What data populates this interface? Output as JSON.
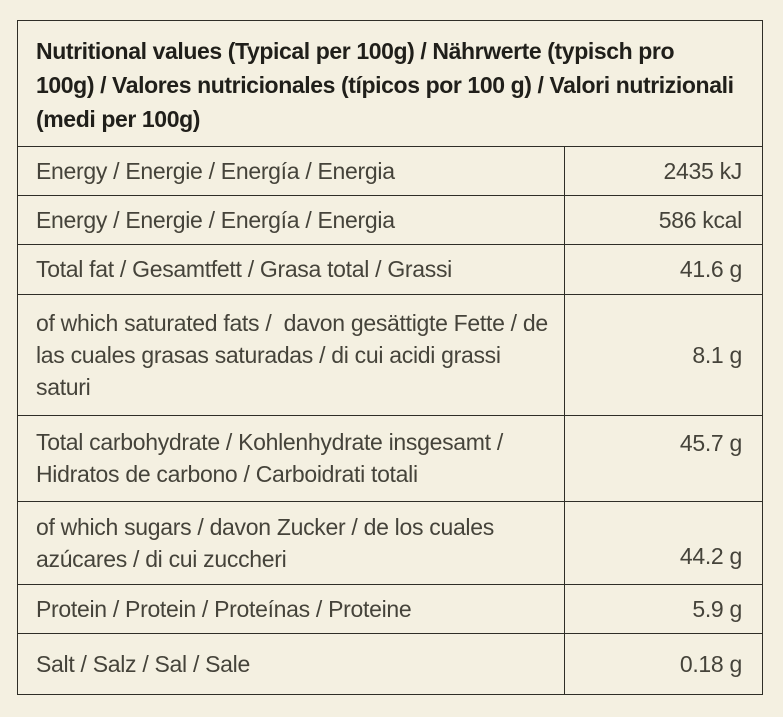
{
  "style": {
    "background_color": "#f4f0e1",
    "border_color": "#2f2e27",
    "header_text_color": "#201f1a",
    "body_text_color": "#45433a"
  },
  "table": {
    "header": "Nutritional values (Typical per 100g) / Nährwerte (typisch pro 100g) / Valores nutricionales (típicos por 100 g) / Valori nutrizionali (medi per 100g)",
    "rows": [
      {
        "label": "Energy / Energie / Energía / Energia",
        "value": "2435 kJ"
      },
      {
        "label": "Energy / Energie / Energía / Energia",
        "value": "586 kcal"
      },
      {
        "label": "Total fat / Gesamtfett / Grasa total / Grassi",
        "value": "41.6 g"
      },
      {
        "label": "of which saturated fats /  davon gesättigte Fette / de las cuales grasas saturadas / di cui acidi grassi saturi",
        "value": "8.1 g"
      },
      {
        "label": "Total carbohydrate / Kohlenhydrate insgesamt / Hidratos de carbono / Carboidrati totali",
        "value": "45.7 g"
      },
      {
        "label": "of which sugars / davon Zucker / de los cuales azúcares / di cui zuccheri",
        "value": "44.2 g"
      },
      {
        "label": "Protein / Protein / Proteínas / Proteine",
        "value": "5.9 g"
      },
      {
        "label": "Salt / Salz / Sal / Sale",
        "value": "0.18 g"
      }
    ]
  }
}
